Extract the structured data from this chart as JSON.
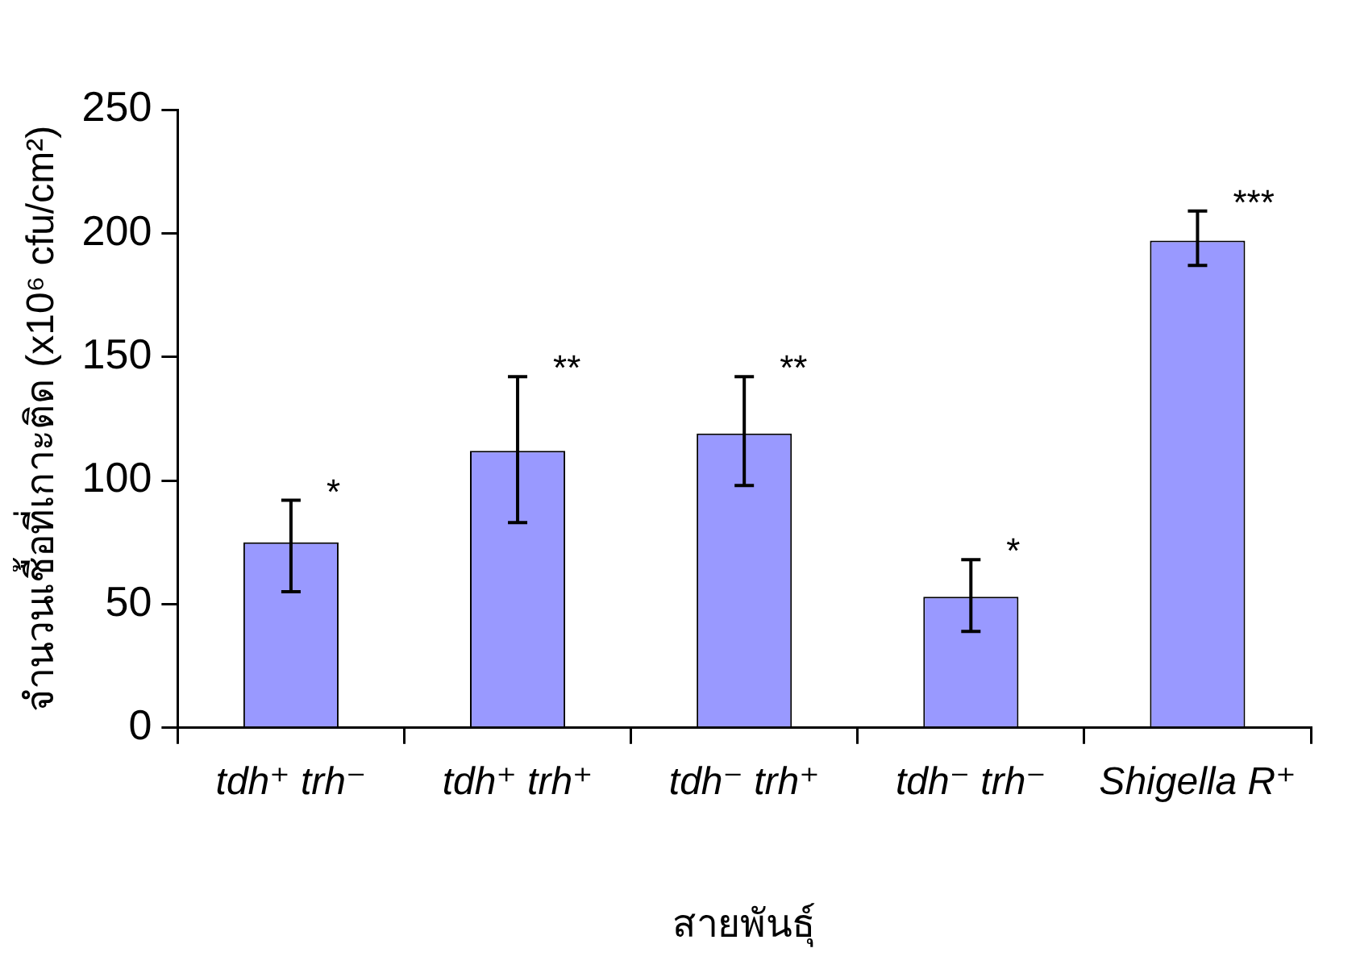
{
  "chart_data": {
    "type": "bar",
    "xlabel": "สายพันธุ์",
    "ylabel": "จำนวนเชื้อที่เกาะติด (x10⁶ cfu/cm²)",
    "categories": [
      "tdh⁺ trh⁻",
      "tdh⁺ trh⁺",
      "tdh⁻ trh⁺",
      "tdh⁻ trh⁻",
      "Shigella R⁺"
    ],
    "values": [
      75,
      112,
      119,
      53,
      197
    ],
    "errors": [
      [
        55,
        92
      ],
      [
        83,
        142
      ],
      [
        98,
        142
      ],
      [
        39,
        68
      ],
      [
        187,
        209
      ]
    ],
    "color": "#9999ff",
    "ylim": [
      0,
      250
    ],
    "yticks": [
      0,
      50,
      100,
      150,
      200,
      250
    ],
    "grid": false,
    "legend": false,
    "annotations": [
      {
        "text": "*",
        "x": "tdh⁺ trh⁻",
        "y": 92
      },
      {
        "text": "**",
        "x": "tdh⁺ trh⁺",
        "y": 142
      },
      {
        "text": "**",
        "x": "tdh⁻ trh⁺",
        "y": 142
      },
      {
        "text": "*",
        "x": "tdh⁻ trh⁻",
        "y": 68
      },
      {
        "text": "***",
        "x": "Shigella R⁺",
        "y": 209
      }
    ]
  }
}
